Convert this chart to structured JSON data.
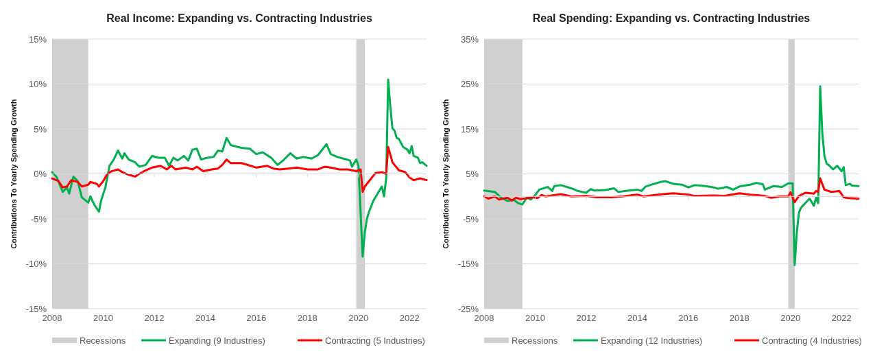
{
  "chart_data": [
    {
      "type": "line",
      "title": "Real Income: Expanding vs. Contracting Industries",
      "ylabel": "Contributions To Yearly Spending Growth",
      "xlim": [
        "2008-01",
        "2022-09"
      ],
      "xticks": [
        "2008",
        "2010",
        "2012",
        "2014",
        "2016",
        "2018",
        "2020",
        "2022"
      ],
      "ylim": [
        -15,
        15
      ],
      "yticks": [
        {
          "value": -15,
          "label": "-15%"
        },
        {
          "value": -10,
          "label": "-10%"
        },
        {
          "value": -5,
          "label": "-5%"
        },
        {
          "value": 0,
          "label": "0%"
        },
        {
          "value": 5,
          "label": "5%"
        },
        {
          "value": 10,
          "label": "10%"
        },
        {
          "value": 15,
          "label": "15%"
        }
      ],
      "grid": "y",
      "legend": "bottom",
      "marker": "none",
      "line_style": "solid",
      "bands": [
        {
          "axis": "x",
          "from": "2008-01",
          "to": "2009-06",
          "label": "Recessions",
          "color": "#d0d0d0"
        },
        {
          "axis": "x",
          "from": "2019-12",
          "to": "2020-04",
          "color": "#d0d0d0"
        }
      ],
      "series": [
        {
          "name": "Expanding (9 Industries)",
          "color": "#00b050",
          "x": [
            "2008-01",
            "2008-03",
            "2008-06",
            "2008-08",
            "2008-09",
            "2008-11",
            "2009-01",
            "2009-03",
            "2009-06",
            "2009-07",
            "2009-09",
            "2009-11",
            "2009-12",
            "2010-02",
            "2010-04",
            "2010-06",
            "2010-08",
            "2010-10",
            "2010-11",
            "2011-01",
            "2011-04",
            "2011-06",
            "2011-09",
            "2011-12",
            "2012-03",
            "2012-06",
            "2012-08",
            "2012-10",
            "2012-12",
            "2013-03",
            "2013-05",
            "2013-07",
            "2013-09",
            "2013-11",
            "2014-02",
            "2014-05",
            "2014-07",
            "2014-09",
            "2014-11",
            "2015-01",
            "2015-06",
            "2015-10",
            "2016-01",
            "2016-04",
            "2016-08",
            "2016-11",
            "2017-02",
            "2017-05",
            "2017-08",
            "2017-11",
            "2018-03",
            "2018-06",
            "2018-10",
            "2018-12",
            "2019-03",
            "2019-06",
            "2019-09",
            "2019-10",
            "2019-12",
            "2020-01",
            "2020-03",
            "2020-04",
            "2020-05",
            "2020-06",
            "2020-08",
            "2020-10",
            "2020-12",
            "2021-01",
            "2021-02",
            "2021-03",
            "2021-04",
            "2021-05",
            "2021-06",
            "2021-07",
            "2021-08",
            "2021-10",
            "2021-12",
            "2022-01",
            "2022-02",
            "2022-03",
            "2022-05",
            "2022-06",
            "2022-07",
            "2022-09"
          ],
          "values": [
            0.2,
            -0.3,
            -2.0,
            -1.5,
            -2.2,
            -0.3,
            -0.8,
            -2.6,
            -3.2,
            -2.5,
            -3.5,
            -4.2,
            -3.0,
            -1.5,
            0.9,
            1.6,
            2.6,
            1.7,
            2.3,
            1.6,
            1.3,
            0.8,
            1.0,
            2.0,
            1.8,
            1.8,
            0.9,
            1.8,
            1.5,
            2.0,
            1.5,
            2.7,
            2.8,
            1.6,
            1.8,
            1.9,
            2.6,
            2.5,
            4.0,
            3.2,
            2.9,
            2.8,
            2.2,
            2.4,
            1.8,
            1.0,
            1.6,
            2.3,
            1.7,
            1.9,
            1.7,
            2.1,
            3.3,
            2.2,
            1.9,
            1.7,
            1.5,
            0.8,
            1.6,
            0.9,
            -9.2,
            -6.5,
            -5.0,
            -4.2,
            -3.0,
            -2.2,
            -1.4,
            -2.5,
            -0.5,
            10.5,
            7.5,
            5.1,
            4.8,
            4.0,
            3.9,
            3.0,
            2.7,
            2.3,
            3.1,
            2.0,
            1.8,
            1.2,
            1.3,
            0.9
          ]
        },
        {
          "name": "Contracting (5 Industries)",
          "color": "#ff0000",
          "x": [
            "2008-01",
            "2008-04",
            "2008-06",
            "2008-08",
            "2008-10",
            "2009-01",
            "2009-03",
            "2009-06",
            "2009-07",
            "2009-10",
            "2009-11",
            "2010-01",
            "2010-03",
            "2010-05",
            "2010-08",
            "2010-10",
            "2011-01",
            "2011-04",
            "2011-06",
            "2011-09",
            "2011-12",
            "2012-04",
            "2012-07",
            "2012-09",
            "2012-11",
            "2013-04",
            "2013-07",
            "2013-09",
            "2013-12",
            "2014-04",
            "2014-07",
            "2014-09",
            "2014-11",
            "2015-01",
            "2015-06",
            "2015-09",
            "2016-01",
            "2016-06",
            "2016-09",
            "2016-12",
            "2017-04",
            "2017-08",
            "2018-01",
            "2018-06",
            "2018-09",
            "2018-12",
            "2019-04",
            "2019-08",
            "2019-12",
            "2020-02",
            "2020-03",
            "2020-04",
            "2020-06",
            "2020-09",
            "2020-12",
            "2021-02",
            "2021-03",
            "2021-05",
            "2021-06",
            "2021-08",
            "2021-11",
            "2022-01",
            "2022-03",
            "2022-06",
            "2022-09"
          ],
          "values": [
            -0.5,
            -0.8,
            -1.5,
            -1.4,
            -0.7,
            -0.9,
            -1.4,
            -1.2,
            -0.9,
            -1.1,
            -1.4,
            -0.8,
            0.0,
            0.3,
            0.5,
            0.2,
            -0.1,
            -0.3,
            0.0,
            0.4,
            0.7,
            0.9,
            0.5,
            0.9,
            0.5,
            0.7,
            0.5,
            0.8,
            0.3,
            0.5,
            0.6,
            1.0,
            1.6,
            1.2,
            1.2,
            1.0,
            0.7,
            0.9,
            0.6,
            0.5,
            0.6,
            0.7,
            0.5,
            0.5,
            0.8,
            0.7,
            0.5,
            0.5,
            0.3,
            0.5,
            -2.0,
            -1.4,
            -0.8,
            0.1,
            0.2,
            0.0,
            3.0,
            1.3,
            1.0,
            0.4,
            0.2,
            -0.4,
            -0.7,
            -0.5,
            -0.7
          ]
        }
      ]
    },
    {
      "type": "line",
      "title": "Real Spending: Expanding vs. Contracting Industries",
      "ylabel": "Contributions To Yearly Spending Growth",
      "xlim": [
        "2008-01",
        "2022-09"
      ],
      "xticks": [
        "2008",
        "2010",
        "2012",
        "2014",
        "2016",
        "2018",
        "2020",
        "2022"
      ],
      "ylim": [
        -25,
        35
      ],
      "yticks": [
        {
          "value": -25,
          "label": "-25%"
        },
        {
          "value": -15,
          "label": "-15%"
        },
        {
          "value": -5,
          "label": "-5%"
        },
        {
          "value": 5,
          "label": "5%"
        },
        {
          "value": 15,
          "label": "15%"
        },
        {
          "value": 25,
          "label": "25%"
        },
        {
          "value": 35,
          "label": "35%"
        }
      ],
      "grid": "y",
      "legend": "bottom",
      "marker": "none",
      "line_style": "solid",
      "bands": [
        {
          "axis": "x",
          "from": "2008-01",
          "to": "2009-07",
          "label": "Recessions",
          "color": "#d0d0d0"
        },
        {
          "axis": "x",
          "from": "2019-12",
          "to": "2020-03",
          "color": "#d0d0d0"
        }
      ],
      "series": [
        {
          "name": "Expanding (12 Industries)",
          "color": "#00b050",
          "x": [
            "2008-01",
            "2008-06",
            "2008-09",
            "2008-12",
            "2009-03",
            "2009-05",
            "2009-07",
            "2009-09",
            "2009-11",
            "2010-01",
            "2010-03",
            "2010-07",
            "2010-09",
            "2010-10",
            "2011-01",
            "2011-06",
            "2011-09",
            "2012-01",
            "2012-03",
            "2012-05",
            "2012-10",
            "2013-02",
            "2013-04",
            "2013-09",
            "2014-01",
            "2014-03",
            "2014-05",
            "2014-09",
            "2014-12",
            "2015-02",
            "2015-06",
            "2015-10",
            "2016-01",
            "2016-04",
            "2016-09",
            "2017-01",
            "2017-03",
            "2017-07",
            "2017-10",
            "2018-01",
            "2018-06",
            "2018-09",
            "2018-12",
            "2019-01",
            "2019-05",
            "2019-09",
            "2019-12",
            "2020-02",
            "2020-03",
            "2020-04",
            "2020-05",
            "2020-06",
            "2020-08",
            "2020-10",
            "2020-12",
            "2021-01",
            "2021-02",
            "2021-03",
            "2021-04",
            "2021-05",
            "2021-06",
            "2021-07",
            "2021-09",
            "2021-11",
            "2022-01",
            "2022-02",
            "2022-03",
            "2022-05",
            "2022-06",
            "2022-09"
          ],
          "values": [
            1.3,
            1.0,
            -0.3,
            -1.0,
            -0.8,
            -1.5,
            -1.8,
            -0.3,
            -0.7,
            0.3,
            1.5,
            2.1,
            1.2,
            2.3,
            2.5,
            1.8,
            1.2,
            0.8,
            1.6,
            1.3,
            1.4,
            1.8,
            1.0,
            1.3,
            1.5,
            1.2,
            2.2,
            2.8,
            3.2,
            3.4,
            2.8,
            2.6,
            2.0,
            2.5,
            2.3,
            2.0,
            1.7,
            2.1,
            1.5,
            2.2,
            2.6,
            3.0,
            2.7,
            1.5,
            2.3,
            2.1,
            2.9,
            2.9,
            -15.3,
            -8.0,
            -3.6,
            -2.5,
            -1.5,
            -0.5,
            -2.1,
            -0.3,
            -1.5,
            24.5,
            14.0,
            9.0,
            7.3,
            7.0,
            6.0,
            6.8,
            5.6,
            6.5,
            2.5,
            2.8,
            2.4,
            2.3
          ]
        },
        {
          "name": "Contracting (4 Industries)",
          "color": "#ff0000",
          "x": [
            "2008-01",
            "2008-03",
            "2008-06",
            "2008-08",
            "2008-12",
            "2009-02",
            "2009-04",
            "2009-06",
            "2009-12",
            "2010-02",
            "2010-04",
            "2010-06",
            "2011-01",
            "2011-06",
            "2012-01",
            "2012-06",
            "2013-01",
            "2013-06",
            "2014-01",
            "2014-04",
            "2015-01",
            "2015-06",
            "2016-01",
            "2016-04",
            "2017-01",
            "2017-06",
            "2018-01",
            "2018-06",
            "2019-01",
            "2019-04",
            "2019-08",
            "2019-12",
            "2020-01",
            "2020-03",
            "2020-05",
            "2020-08",
            "2020-12",
            "2021-01",
            "2021-02",
            "2021-03",
            "2021-05",
            "2021-08",
            "2021-12",
            "2022-02",
            "2022-04",
            "2022-09"
          ],
          "values": [
            0.0,
            -0.5,
            0.0,
            -0.7,
            -0.3,
            -0.9,
            -0.3,
            -0.6,
            -0.2,
            -0.4,
            0.3,
            0.0,
            0.5,
            0.0,
            0.1,
            -0.2,
            -0.2,
            0.0,
            0.4,
            0.0,
            0.5,
            0.7,
            0.4,
            0.1,
            0.2,
            0.1,
            0.7,
            0.4,
            0.1,
            -0.3,
            0.0,
            0.0,
            0.9,
            -1.3,
            0.1,
            0.8,
            0.6,
            1.2,
            1.0,
            4.0,
            1.5,
            1.0,
            1.2,
            -0.2,
            -0.4,
            -0.5
          ]
        }
      ]
    }
  ]
}
